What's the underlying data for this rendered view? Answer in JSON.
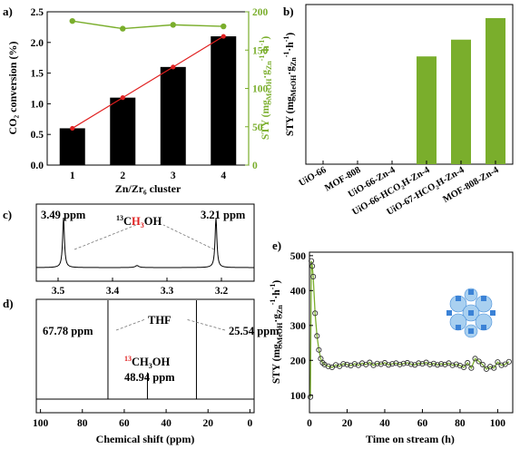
{
  "panels": {
    "a": {
      "label": "a)",
      "xlabel": "Zn/Zr₆ cluster",
      "ylabel": "CO₂ conversion (%)",
      "y2label": "STY (mgₘₑₒₕ·gₖₙ⁻¹·h⁻¹)",
      "y2label_main": "STY (mg",
      "y2label_sub1": "MeOH",
      "y2label_mid": "·g",
      "y2label_sub2": "Zn",
      "y2label_sup": "-1",
      "y2label_end": "·h",
      "y2label_sup2": "-1",
      "y2label_close": ")"
    },
    "b": {
      "label": "b)",
      "ylabel_main": "STY (mg",
      "ylabel_sub1": "MeOH",
      "ylabel_mid": "·g",
      "ylabel_sub2": "Zn",
      "ylabel_sup": "-1",
      "ylabel_end": "·h",
      "ylabel_sup2": "-1",
      "ylabel_close": ")"
    },
    "c": {
      "label": "c)",
      "peak_left": "3.49 ppm",
      "peak_right": "3.21 ppm",
      "species_sup": "13",
      "species_pre": "C",
      "species_red": "H",
      "species_sub": "3",
      "species_post": "OH"
    },
    "d": {
      "label": "d)",
      "xlabel": "Chemical shift (ppm)",
      "peak_left": "67.78 ppm",
      "peak_right": "25.54 ppm",
      "thf": "THF",
      "meoh_sup": "13",
      "meoh_main": "CH",
      "meoh_sub": "3",
      "meoh_end": "OH",
      "meoh_ppm": "48.94 ppm"
    },
    "e": {
      "label": "e)",
      "xlabel": "Time on stream (h)",
      "ylabel_main": "STY (mg",
      "ylabel_sub1": "MeOH",
      "ylabel_mid": "·g",
      "ylabel_sub2": "Zn",
      "ylabel_sup": "-1",
      "ylabel_end": "·h",
      "ylabel_sup2": "-1",
      "ylabel_close": ")"
    }
  },
  "colors": {
    "bar_black": "#000000",
    "green": "#7aae2c",
    "red": "#e02020",
    "mol_blue": "#4a90d9"
  },
  "chart_data": [
    {
      "id": "a",
      "type": "bar",
      "categories": [
        "1",
        "2",
        "3",
        "4"
      ],
      "values": [
        0.6,
        1.1,
        1.6,
        2.1
      ],
      "line_red": [
        0.6,
        1.1,
        1.6,
        2.1
      ],
      "series_green_sty": [
        188,
        178,
        183,
        181
      ],
      "xlabel": "Zn/Zr₆ cluster",
      "ylabel": "CO₂ conversion (%)",
      "ylim": [
        0,
        2.5
      ],
      "yticks": [
        "0.0",
        "0.5",
        "1.0",
        "1.5",
        "2.0",
        "2.5"
      ],
      "y2lim": [
        0,
        200
      ],
      "y2ticks": [
        "0",
        "50",
        "100",
        "150",
        "200"
      ]
    },
    {
      "id": "b",
      "type": "bar",
      "categories": [
        "UiO-66",
        "MOF-808",
        "UiO-66-Zn-4",
        "UiO-66-HCO₂H-Zn-4",
        "UiO-67-HCO₂H-Zn-4",
        "MOF-808-Zn-4"
      ],
      "values": [
        0,
        0,
        0,
        135,
        156,
        183
      ],
      "ylim": [
        0,
        200
      ]
    },
    {
      "id": "c",
      "type": "line",
      "x_range": [
        3.54,
        3.14
      ],
      "peaks": [
        3.49,
        3.21
      ],
      "xticks": [
        "3.5",
        "3.4",
        "3.3",
        "3.2"
      ]
    },
    {
      "id": "d",
      "type": "line",
      "x_range": [
        102,
        -2
      ],
      "peaks": [
        67.78,
        48.94,
        25.54
      ],
      "xticks": [
        "100",
        "80",
        "60",
        "40",
        "20",
        "0"
      ],
      "xlabel": "Chemical shift (ppm)"
    },
    {
      "id": "e",
      "type": "scatter",
      "xlim": [
        0,
        108
      ],
      "ylim": [
        50,
        510
      ],
      "xticks": [
        "0",
        "20",
        "40",
        "60",
        "80",
        "100"
      ],
      "yticks": [
        "100",
        "200",
        "300",
        "400",
        "500"
      ],
      "x": [
        0.5,
        1,
        1.5,
        2,
        3,
        4,
        5,
        6,
        7,
        8,
        10,
        12,
        14,
        16,
        18,
        20,
        22,
        24,
        26,
        28,
        30,
        32,
        34,
        36,
        38,
        40,
        42,
        44,
        46,
        48,
        50,
        52,
        54,
        56,
        58,
        60,
        62,
        64,
        66,
        68,
        70,
        72,
        74,
        76,
        78,
        80,
        82,
        84,
        86,
        88,
        90,
        92,
        94,
        96,
        98,
        100,
        102,
        104,
        106
      ],
      "y": [
        95,
        485,
        470,
        440,
        335,
        270,
        230,
        205,
        193,
        188,
        183,
        180,
        187,
        183,
        190,
        188,
        185,
        190,
        186,
        192,
        188,
        194,
        186,
        191,
        189,
        193,
        187,
        190,
        192,
        188,
        191,
        193,
        189,
        187,
        192,
        190,
        194,
        188,
        191,
        187,
        190,
        188,
        192,
        186,
        189,
        185,
        180,
        193,
        178,
        205,
        197,
        188,
        175,
        182,
        178,
        195,
        186,
        189,
        196
      ]
    }
  ]
}
